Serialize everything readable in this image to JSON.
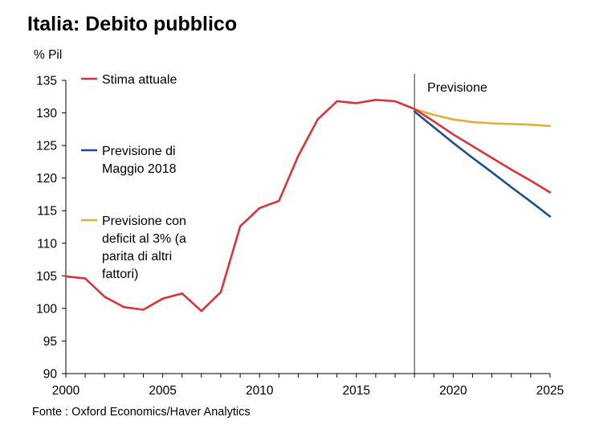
{
  "title": "Italia: Debito pubblico",
  "source": "Fonte : Oxford Economics/Haver Analytics",
  "chart_data": {
    "type": "line",
    "ylabel": "% Pil",
    "xlim": [
      2000,
      2025
    ],
    "ylim": [
      90,
      135
    ],
    "x_ticks": [
      "2000",
      "2005",
      "2010",
      "2015",
      "2020",
      "2025"
    ],
    "y_ticks": [
      "90",
      "95",
      "100",
      "105",
      "110",
      "115",
      "120",
      "125",
      "130",
      "135"
    ],
    "annotation": "Previsione",
    "forecast_start": 2018,
    "grid": false,
    "series": [
      {
        "name": "Stima attuale",
        "color": "#d9343a",
        "legend_lines": [
          "Stima attuale"
        ],
        "points": [
          [
            2000,
            104.9
          ],
          [
            2001,
            104.6
          ],
          [
            2002,
            101.8
          ],
          [
            2003,
            100.2
          ],
          [
            2004,
            99.8
          ],
          [
            2005,
            101.5
          ],
          [
            2006,
            102.3
          ],
          [
            2007,
            99.6
          ],
          [
            2008,
            102.5
          ],
          [
            2009,
            112.6
          ],
          [
            2010,
            115.4
          ],
          [
            2011,
            116.5
          ],
          [
            2012,
            123.4
          ],
          [
            2013,
            129.0
          ],
          [
            2014,
            131.8
          ],
          [
            2015,
            131.5
          ],
          [
            2016,
            132.0
          ],
          [
            2017,
            131.8
          ],
          [
            2018,
            130.6
          ],
          [
            2019,
            128.7
          ],
          [
            2020,
            126.7
          ],
          [
            2021,
            124.9
          ],
          [
            2022,
            123.1
          ],
          [
            2023,
            121.3
          ],
          [
            2024,
            119.6
          ],
          [
            2025,
            117.8
          ]
        ]
      },
      {
        "name": "Previsione di Maggio 2018",
        "color": "#1f4e8c",
        "legend_lines": [
          "Previsione di",
          "Maggio 2018"
        ],
        "points": [
          [
            2018,
            130.2
          ],
          [
            2019,
            127.8
          ],
          [
            2020,
            125.4
          ],
          [
            2021,
            123.1
          ],
          [
            2022,
            120.9
          ],
          [
            2023,
            118.6
          ],
          [
            2024,
            116.4
          ],
          [
            2025,
            114.1
          ]
        ]
      },
      {
        "name": "Previsione con deficit al 3% (a parita di altri fattori)",
        "color": "#e0b13a",
        "legend_lines": [
          "Previsione con",
          "deficit al 3% (a",
          "parita di altri",
          "fattori)"
        ],
        "points": [
          [
            2018,
            130.6
          ],
          [
            2019,
            129.7
          ],
          [
            2020,
            129.0
          ],
          [
            2021,
            128.6
          ],
          [
            2022,
            128.4
          ],
          [
            2023,
            128.3
          ],
          [
            2024,
            128.2
          ],
          [
            2025,
            128.0
          ]
        ]
      }
    ]
  }
}
